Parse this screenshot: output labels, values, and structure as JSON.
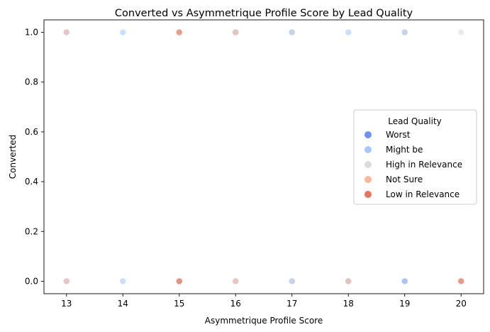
{
  "chart_data": {
    "type": "scatter",
    "title": "Converted vs Asymmetrique Profile Score by Lead Quality",
    "xlabel": "Asymmetrique Profile Score",
    "ylabel": "Converted",
    "xlim": [
      12.6,
      20.4
    ],
    "ylim": [
      -0.05,
      1.05
    ],
    "xticks": [
      13,
      14,
      15,
      16,
      17,
      18,
      19,
      20
    ],
    "xtick_labels": [
      "13",
      "14",
      "15",
      "16",
      "17",
      "18",
      "19",
      "20"
    ],
    "yticks": [
      0.0,
      0.2,
      0.4,
      0.6,
      0.8,
      1.0
    ],
    "ytick_labels": [
      "0.0",
      "0.2",
      "0.4",
      "0.6",
      "0.8",
      "1.0"
    ],
    "grid": false,
    "legend": {
      "title": "Lead Quality",
      "placement": "center-right"
    },
    "series": [
      {
        "name": "Worst",
        "color": "#6f92f3",
        "points": [
          [
            15,
            0
          ],
          [
            16,
            1
          ],
          [
            17,
            0
          ],
          [
            17,
            1
          ],
          [
            18,
            0
          ],
          [
            19,
            0
          ],
          [
            19,
            1
          ]
        ]
      },
      {
        "name": "Might be",
        "color": "#aac7fd",
        "points": [
          [
            13,
            0
          ],
          [
            13,
            1
          ],
          [
            14,
            0
          ],
          [
            14,
            1
          ],
          [
            15,
            0
          ],
          [
            16,
            0
          ],
          [
            16,
            1
          ],
          [
            17,
            0
          ],
          [
            17,
            1
          ],
          [
            18,
            0
          ],
          [
            18,
            1
          ],
          [
            19,
            0
          ],
          [
            19,
            1
          ]
        ]
      },
      {
        "name": "High in Relevance",
        "color": "#dddcdc",
        "points": [
          [
            15,
            0
          ],
          [
            16,
            0
          ],
          [
            16,
            1
          ],
          [
            17,
            0
          ],
          [
            17,
            1
          ],
          [
            18,
            0
          ],
          [
            19,
            1
          ],
          [
            20,
            0
          ],
          [
            20,
            1
          ]
        ]
      },
      {
        "name": "Not Sure",
        "color": "#f7b89c",
        "points": [
          [
            13,
            0
          ],
          [
            13,
            1
          ],
          [
            15,
            0
          ],
          [
            15,
            1
          ],
          [
            16,
            0
          ],
          [
            16,
            1
          ],
          [
            18,
            0
          ],
          [
            20,
            0
          ]
        ]
      },
      {
        "name": "Low in Relevance",
        "color": "#e7745b",
        "points": [
          [
            15,
            0
          ],
          [
            15,
            1
          ],
          [
            20,
            0
          ]
        ]
      }
    ]
  }
}
